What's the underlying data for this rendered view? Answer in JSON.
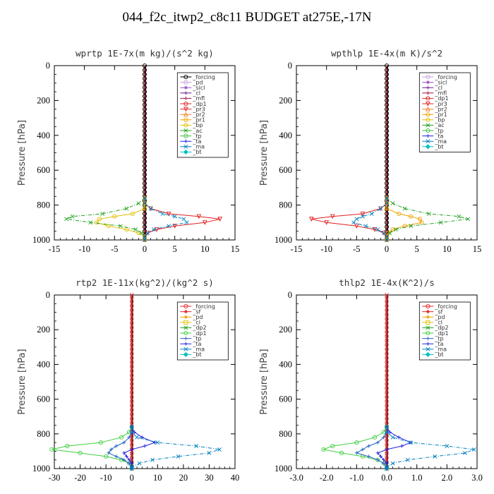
{
  "title": "044_f2c_itwp2_c8c11  BUDGET at275E,-17N",
  "chart_data": [
    {
      "type": "line",
      "title": "wprtp   1E-7x(m kg)/(s^2 kg)",
      "ylabel": "Pressure [hPa]",
      "xlim": [
        -15,
        15
      ],
      "ylim": [
        0,
        1000
      ],
      "y_inverted": true,
      "xticks": [
        "-15",
        "-10",
        "-5",
        "0",
        "5",
        "10",
        "15"
      ],
      "yticks": [
        "0",
        "200",
        "400",
        "600",
        "800",
        "1000"
      ],
      "legend_position": "top-right",
      "levels": [
        760,
        790,
        820,
        850,
        865,
        880,
        900,
        920,
        940,
        960,
        980,
        1000
      ],
      "series": [
        {
          "name": "_forcing",
          "color": "#000000",
          "marker": "o",
          "values": [
            0,
            0,
            0,
            0,
            0,
            0,
            0,
            0,
            0,
            0,
            0,
            0
          ]
        },
        {
          "name": "_pd",
          "color": "#c8a0e0",
          "marker": "o",
          "values": [
            0,
            0,
            0,
            0,
            0,
            0,
            0,
            0,
            0,
            0,
            0,
            0
          ]
        },
        {
          "name": "_sicl",
          "color": "#9a4fc0",
          "marker": "*",
          "values": [
            0,
            0,
            0,
            0,
            0,
            0,
            0,
            0,
            0,
            0,
            0,
            0
          ]
        },
        {
          "name": "_cl",
          "color": "#6a1a8a",
          "marker": "+",
          "values": [
            0,
            0,
            0,
            0,
            0,
            0,
            0,
            0,
            0,
            0,
            0,
            0
          ]
        },
        {
          "name": "_mfl",
          "color": "#a01040",
          "marker": "+",
          "values": [
            0,
            0,
            0,
            0,
            0,
            0,
            0,
            0,
            0,
            0,
            0,
            0
          ]
        },
        {
          "name": "_dp1",
          "color": "#e02020",
          "marker": "o",
          "values": [
            0,
            0,
            0,
            0,
            0,
            0,
            0,
            0,
            0,
            0,
            0,
            0
          ]
        },
        {
          "name": "_pr3",
          "color": "#e02020",
          "marker": "v",
          "values": [
            0,
            0,
            1,
            4,
            9,
            12.5,
            10,
            5,
            2,
            0.5,
            0,
            0
          ]
        },
        {
          "name": "_pr2",
          "color": "#f08020",
          "marker": "^",
          "values": [
            0,
            0,
            0,
            0,
            0,
            0,
            0,
            0,
            0,
            0,
            0,
            0
          ]
        },
        {
          "name": "_pr1",
          "color": "#f0a000",
          "marker": "o",
          "values": [
            0,
            0,
            0,
            0,
            0,
            0,
            0,
            0,
            0,
            0,
            0,
            0
          ]
        },
        {
          "name": "_bp",
          "color": "#e0c000",
          "marker": "o",
          "values": [
            0,
            0,
            0,
            -2,
            -5,
            -7.5,
            -8,
            -6,
            -3,
            -1,
            0,
            0
          ]
        },
        {
          "name": "_ac",
          "color": "#20a020",
          "marker": "x",
          "values": [
            0,
            -1,
            -3,
            -7,
            -12,
            -13,
            -9,
            -4,
            -1.5,
            -0.5,
            0,
            0
          ]
        },
        {
          "name": "_tp",
          "color": "#40c040",
          "marker": "o",
          "values": [
            0,
            0,
            0,
            0,
            0,
            0,
            0,
            0,
            0,
            0,
            0,
            0
          ]
        },
        {
          "name": "_ta",
          "color": "#2020e0",
          "marker": "+",
          "values": [
            0,
            0,
            0,
            0,
            0,
            0,
            0,
            0,
            0,
            0,
            0,
            0
          ]
        },
        {
          "name": "_ma",
          "color": "#0080c0",
          "marker": "x",
          "values": [
            0,
            0,
            1,
            3,
            5,
            6.5,
            7,
            4,
            1.5,
            0.5,
            0,
            0
          ]
        },
        {
          "name": "_bt",
          "color": "#00c0c0",
          "marker": "d",
          "values": [
            0,
            0,
            0,
            0,
            0,
            0,
            0,
            0,
            0,
            0,
            0,
            0
          ]
        }
      ]
    },
    {
      "type": "line",
      "title": "wpthlp   1E-4x(m K)/s^2",
      "ylabel": "Pressure [hPa]",
      "xlim": [
        -15,
        15
      ],
      "ylim": [
        0,
        1000
      ],
      "y_inverted": true,
      "xticks": [
        "-15",
        "-10",
        "-5",
        "0",
        "5",
        "10",
        "15"
      ],
      "yticks": [
        "0",
        "200",
        "400",
        "600",
        "800",
        "1000"
      ],
      "legend_position": "top-right",
      "levels": [
        760,
        790,
        820,
        850,
        865,
        880,
        900,
        920,
        940,
        960,
        980,
        1000
      ],
      "series": [
        {
          "name": "_forcing",
          "color": "#c8a0e0",
          "marker": "o",
          "values": [
            0,
            0,
            0,
            0,
            0,
            0,
            0,
            0,
            0,
            0,
            0,
            0
          ]
        },
        {
          "name": "_sicl",
          "color": "#9a4fc0",
          "marker": "*",
          "values": [
            0,
            0,
            0,
            0,
            0,
            0,
            0,
            0,
            0,
            0,
            0,
            0
          ]
        },
        {
          "name": "_cl",
          "color": "#6a1a8a",
          "marker": "+",
          "values": [
            0,
            0,
            0,
            0,
            0,
            0,
            0,
            0,
            0,
            0,
            0,
            0
          ]
        },
        {
          "name": "_mfl",
          "color": "#a01040",
          "marker": "+",
          "values": [
            0,
            0,
            0,
            0,
            0,
            0,
            0,
            0,
            0,
            0,
            0,
            0
          ]
        },
        {
          "name": "_dp1",
          "color": "#e02020",
          "marker": "o",
          "values": [
            0,
            0,
            0,
            0,
            0,
            0,
            0,
            0,
            0,
            0,
            0,
            0
          ]
        },
        {
          "name": "_pr3",
          "color": "#e02020",
          "marker": "v",
          "values": [
            0,
            0,
            -1,
            -4,
            -9,
            -12.5,
            -10,
            -5,
            -2,
            -0.5,
            0,
            0
          ]
        },
        {
          "name": "_pr2",
          "color": "#f08020",
          "marker": "^",
          "values": [
            0,
            0,
            0,
            0,
            0,
            0,
            0,
            0,
            0,
            0,
            0,
            0
          ]
        },
        {
          "name": "_pr1",
          "color": "#f0a000",
          "marker": "o",
          "values": [
            0,
            0,
            0,
            2,
            4,
            5.5,
            5.8,
            3,
            1,
            0.3,
            0,
            0
          ]
        },
        {
          "name": "_bp",
          "color": "#e0c000",
          "marker": "o",
          "values": [
            0,
            0,
            0,
            0,
            0,
            0,
            0,
            0,
            0,
            0,
            0,
            0
          ]
        },
        {
          "name": "_ac",
          "color": "#20a020",
          "marker": "x",
          "values": [
            0,
            1,
            3,
            7,
            12,
            13.5,
            9,
            4,
            1.5,
            0.5,
            0,
            0
          ]
        },
        {
          "name": "_tp",
          "color": "#40c040",
          "marker": "o",
          "values": [
            0,
            0,
            0,
            0,
            0,
            0,
            0,
            0,
            0,
            0,
            0,
            0
          ]
        },
        {
          "name": "_ta",
          "color": "#2020e0",
          "marker": "+",
          "values": [
            0,
            0,
            0,
            0,
            0,
            0,
            0,
            0,
            0,
            0,
            0,
            0
          ]
        },
        {
          "name": "_ma",
          "color": "#0080c0",
          "marker": "x",
          "values": [
            0,
            0,
            -1,
            -2.5,
            -4,
            -5,
            -5.5,
            -3.5,
            -1.5,
            -0.5,
            0,
            0
          ]
        },
        {
          "name": "_bt",
          "color": "#00c0c0",
          "marker": "d",
          "values": [
            0,
            0,
            0,
            0,
            0,
            0,
            0,
            0,
            0,
            0,
            0,
            0
          ]
        }
      ]
    },
    {
      "type": "line",
      "title": "rtp2   1E-11x(kg^2)/(kg^2 s)",
      "ylabel": "Pressure [hPa]",
      "xlim": [
        -30,
        40
      ],
      "ylim": [
        0,
        1000
      ],
      "y_inverted": true,
      "xticks": [
        "-30",
        "-20",
        "-10",
        "0",
        "10",
        "20",
        "30",
        "40"
      ],
      "yticks": [
        "0",
        "200",
        "400",
        "600",
        "800",
        "1000"
      ],
      "legend_position": "top-right",
      "levels": [
        760,
        790,
        820,
        850,
        870,
        890,
        910,
        930,
        950,
        970,
        990,
        1000
      ],
      "series": [
        {
          "name": "_forcing",
          "color": "#e02020",
          "marker": "o",
          "values": [
            0,
            0,
            0,
            0,
            0,
            0,
            0,
            0,
            0,
            0,
            0,
            0
          ]
        },
        {
          "name": "_sf",
          "color": "#e02020",
          "marker": "*",
          "values": [
            0,
            0,
            0,
            0,
            0,
            0,
            0,
            0,
            0,
            0,
            0,
            0
          ]
        },
        {
          "name": "_pd",
          "color": "#f0a000",
          "marker": "*",
          "values": [
            0,
            0,
            0,
            0,
            0,
            0,
            0,
            0,
            0,
            0,
            0,
            0
          ]
        },
        {
          "name": "_cl",
          "color": "#e0c000",
          "marker": "s",
          "values": [
            0,
            0,
            0,
            0,
            0,
            0,
            0,
            0,
            0,
            0,
            0,
            0
          ]
        },
        {
          "name": "_dp2",
          "color": "#20a020",
          "marker": "x",
          "values": [
            0,
            0,
            0,
            0,
            0,
            0,
            0,
            0,
            0,
            0,
            0,
            0
          ]
        },
        {
          "name": "_dp1",
          "color": "#40d040",
          "marker": "o",
          "values": [
            0,
            -1,
            -4,
            -12,
            -25,
            -31,
            -20,
            -10,
            -4,
            -1,
            0,
            0
          ]
        },
        {
          "name": "_tp",
          "color": "#2060c0",
          "marker": "+",
          "values": [
            0,
            0,
            -1,
            -3,
            -6,
            -8,
            -9,
            -6,
            -3,
            -1,
            0,
            0
          ]
        },
        {
          "name": "_ta",
          "color": "#2020e0",
          "marker": "+",
          "values": [
            0,
            1,
            4,
            9,
            5,
            0,
            -3,
            -2,
            -1,
            0,
            0,
            0
          ]
        },
        {
          "name": "_ma",
          "color": "#0080c0",
          "marker": "x",
          "values": [
            0,
            0,
            2,
            10,
            25,
            34,
            30,
            18,
            8,
            3,
            0,
            0
          ]
        },
        {
          "name": "_bt",
          "color": "#00c0c0",
          "marker": "d",
          "values": [
            0,
            0,
            0,
            0,
            0,
            0,
            0,
            0,
            0,
            0,
            0,
            0
          ]
        }
      ]
    },
    {
      "type": "line",
      "title": "thlp2   1E-4x(K^2)/s",
      "ylabel": "Pressure [hPa]",
      "xlim": [
        -3.0,
        3.0
      ],
      "ylim": [
        0,
        1000
      ],
      "y_inverted": true,
      "xticks": [
        "-3.0",
        "-2.0",
        "-1.0",
        "0.0",
        "1.0",
        "2.0",
        "3.0"
      ],
      "yticks": [
        "0",
        "200",
        "400",
        "600",
        "800",
        "1000"
      ],
      "legend_position": "top-right",
      "levels": [
        760,
        790,
        820,
        850,
        870,
        890,
        910,
        930,
        950,
        970,
        990,
        1000
      ],
      "series": [
        {
          "name": "_forcing",
          "color": "#e02020",
          "marker": "o",
          "values": [
            0,
            0,
            0,
            0,
            0,
            0,
            0,
            0,
            0,
            0,
            0,
            0
          ]
        },
        {
          "name": "_sf",
          "color": "#e02020",
          "marker": "*",
          "values": [
            0,
            0,
            0,
            0,
            0,
            0,
            0,
            0,
            0,
            0,
            0,
            0
          ]
        },
        {
          "name": "_pd",
          "color": "#f0a000",
          "marker": "*",
          "values": [
            0,
            0,
            0,
            0,
            0,
            0,
            0,
            0,
            0,
            0,
            0,
            0
          ]
        },
        {
          "name": "_cl",
          "color": "#e0c000",
          "marker": "s",
          "values": [
            0,
            0,
            0,
            0,
            0,
            0,
            0,
            0,
            0,
            0,
            0,
            0
          ]
        },
        {
          "name": "_dp2",
          "color": "#20a020",
          "marker": "x",
          "values": [
            0,
            0,
            0,
            0,
            0,
            0,
            0,
            0,
            0,
            0,
            0,
            0
          ]
        },
        {
          "name": "_dp1",
          "color": "#40d040",
          "marker": "o",
          "values": [
            0,
            -0.1,
            -0.4,
            -1.0,
            -1.8,
            -2.1,
            -1.5,
            -0.8,
            -0.3,
            -0.1,
            0,
            0
          ]
        },
        {
          "name": "_tp",
          "color": "#2060c0",
          "marker": "+",
          "values": [
            0,
            0,
            -0.1,
            -0.3,
            -0.6,
            -0.8,
            -1.0,
            -0.6,
            -0.3,
            -0.1,
            0,
            0
          ]
        },
        {
          "name": "_ta",
          "color": "#2020e0",
          "marker": "+",
          "values": [
            0,
            0.1,
            0.4,
            0.8,
            0.5,
            0,
            -0.3,
            -0.2,
            -0.1,
            0,
            0,
            0
          ]
        },
        {
          "name": "_ma",
          "color": "#0080c0",
          "marker": "x",
          "values": [
            0,
            0,
            0.2,
            0.8,
            2.0,
            2.9,
            2.6,
            1.6,
            0.7,
            0.2,
            0,
            0
          ]
        },
        {
          "name": "_bt",
          "color": "#00c0c0",
          "marker": "d",
          "values": [
            0,
            0,
            0,
            0,
            0,
            0,
            0,
            0,
            0,
            0,
            0,
            0
          ]
        }
      ]
    }
  ]
}
